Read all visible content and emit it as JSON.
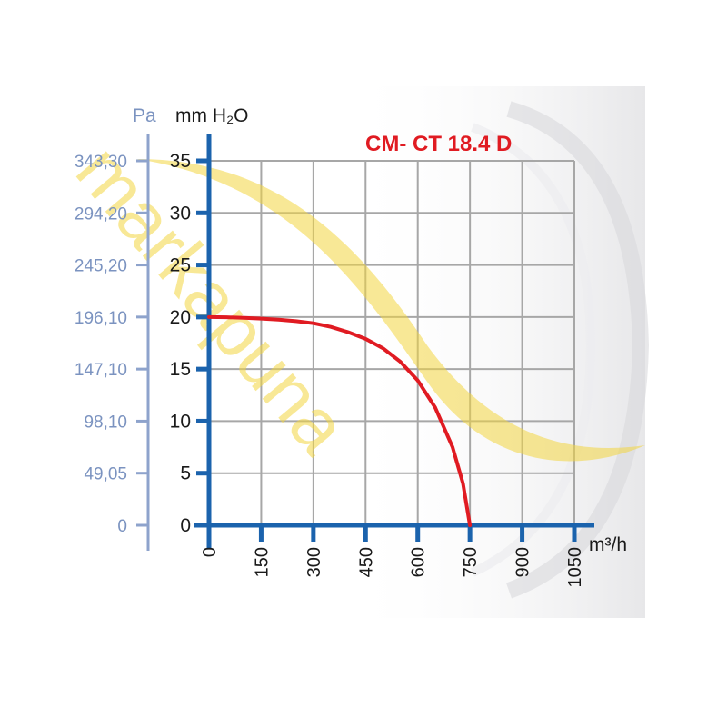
{
  "chart_data": {
    "type": "line",
    "title": "CM- CT 18.4 D",
    "xlabel": "m³/h",
    "ylabel": "mm H₂O",
    "y2label": "Pa",
    "xlim": [
      0,
      1050
    ],
    "ylim": [
      0,
      35
    ],
    "grid": true,
    "x_ticks": [
      0,
      150,
      300,
      450,
      600,
      750,
      900,
      1050
    ],
    "x_tick_labels": [
      "0",
      "150",
      "300",
      "450",
      "600",
      "750",
      "900",
      "1050"
    ],
    "y_ticks": [
      0,
      5,
      10,
      15,
      20,
      25,
      30,
      35
    ],
    "y_tick_labels": [
      "0",
      "5",
      "10",
      "15",
      "20",
      "25",
      "30",
      "35"
    ],
    "y2_tick_labels": [
      "0",
      "49,05",
      "98,10",
      "147,10",
      "196,10",
      "245,20",
      "294,20",
      "343,30"
    ],
    "series": [
      {
        "color": "#e01b22",
        "x": [
          0,
          50,
          100,
          150,
          200,
          250,
          300,
          350,
          400,
          450,
          500,
          550,
          600,
          650,
          700,
          730,
          750
        ],
        "y": [
          20,
          19.98,
          19.92,
          19.85,
          19.75,
          19.6,
          19.4,
          19.05,
          18.55,
          17.9,
          17,
          15.7,
          13.9,
          11.3,
          7.5,
          4,
          0
        ]
      }
    ]
  },
  "watermark": {
    "text": "markapuna"
  },
  "colors": {
    "axis": "#1b63ad",
    "pa_axis": "#8ea3cc",
    "grid": "#a7a7a7",
    "curve": "#e01b22",
    "curve_highlight": "#f28a1e",
    "watermark": "#f2d640"
  }
}
